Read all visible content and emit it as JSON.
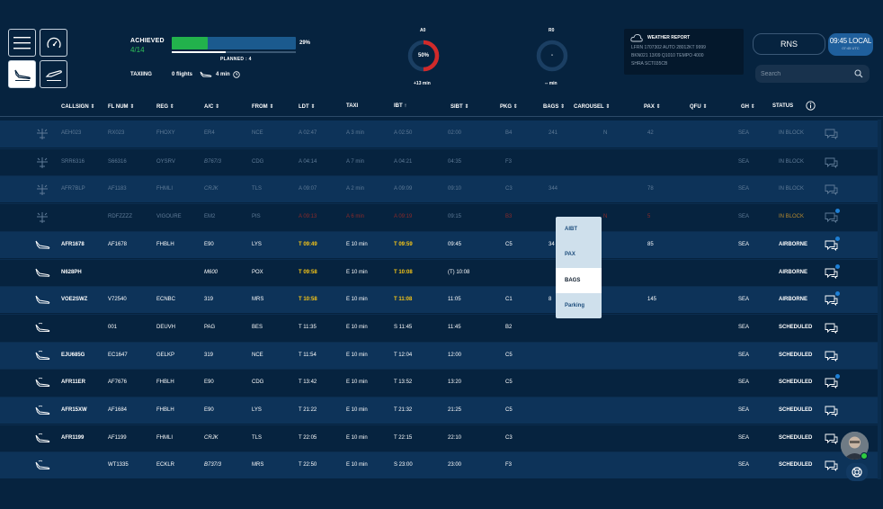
{
  "header": {
    "achieved_label": "ACHIEVED",
    "achieved_value": "4/14",
    "progress_fraction": 0.29,
    "progress_pct": "29%",
    "planned_label": "PLANNED : 4",
    "taxiing_label": "TAXIING",
    "taxiing_flights": "0 flights",
    "taxiing_time": "4 min",
    "gauge_a0": {
      "title": "A0",
      "value": "50%",
      "sub": "+13 min",
      "fraction": 0.5
    },
    "gauge_r0": {
      "title": "R0",
      "value": "-",
      "sub": "-- min"
    },
    "weather": {
      "title": "WEATHER REPORT",
      "lines": [
        "LFRN 1707302 AUTO 28012KT 9999",
        "BKN021 13/09 Q1010 TEMPO 4000",
        "SHRA SCT035CB"
      ]
    },
    "station_button": "RNS",
    "local_time": "09:45 LOCAL",
    "utc_time": "07:45 UTC",
    "search_placeholder": "Search"
  },
  "colors": {
    "accent": "#1f5f9c",
    "highlight": "#f5c518",
    "green": "#22b24c",
    "alert": "#d12a2a"
  },
  "columns": [
    "CALLSIGN ⇕",
    "FL NUM ⇕",
    "REG ⇕",
    "A/C ⇕",
    "FROM ⇕",
    "LDT ⇕",
    "TAXI",
    "IBT ↑",
    "SIBT ⇕",
    "PKG ⇕",
    "BAGS ⇕",
    "CAROUSEL ⇕",
    "PAX ⇕",
    "QFU ⇕",
    "GH ⇕",
    "STATUS"
  ],
  "rows": [
    {
      "callsign": "AEH023",
      "flnum": "RX023",
      "reg": "FHOXY",
      "ac": "ER4",
      "from": "NCE",
      "ldt": "A 02:47",
      "taxi": "A 3 min",
      "ibt": "A 02:50",
      "sibt": "02:00",
      "pkg": "B4",
      "bags": "241",
      "carousel": "N",
      "pax": "42",
      "gh": "SEA",
      "status": "IN BLOCK"
    },
    {
      "callsign": "SRR6316",
      "flnum": "S66316",
      "reg": "OYSRV",
      "ac": "B767/3",
      "from": "CDG",
      "ldt": "A 04:14",
      "taxi": "A 7 min",
      "ibt": "A 04:21",
      "sibt": "04:35",
      "pkg": "F3",
      "bags": "",
      "carousel": "",
      "pax": "",
      "gh": "SEA",
      "status": "IN BLOCK"
    },
    {
      "callsign": "AFR7BLP",
      "flnum": "AF1183",
      "reg": "FHMLI",
      "ac": "CRJK",
      "from": "TLS",
      "ldt": "A 09:07",
      "taxi": "A 2 min",
      "ibt": "A 09:09",
      "sibt": "09:10",
      "pkg": "C3",
      "bags": "344",
      "carousel": "",
      "pax": "78",
      "gh": "SEA",
      "status": "IN BLOCK"
    },
    {
      "callsign": "",
      "flnum": "RDFZZZZ",
      "reg": "VIGOURE",
      "ac": "EM2",
      "from": "PIS",
      "ldt": "A 09:13",
      "taxi": "A 6 min",
      "ibt": "A 09:19",
      "sibt": "09:15",
      "pkg": "B3",
      "bags": "",
      "carousel": "N",
      "pax": "5",
      "gh": "SEA",
      "status": "IN BLOCK"
    },
    {
      "callsign": "AFR1678",
      "flnum": "AF1678",
      "reg": "FHBLH",
      "ac": "E90",
      "from": "LYS",
      "ldt": "T 09:49",
      "taxi": "E 10 min",
      "ibt": "T 09:59",
      "sibt": "09:45",
      "pkg": "C5",
      "bags": "34",
      "carousel": "",
      "pax": "85",
      "gh": "SEA",
      "status": "AIRBORNE"
    },
    {
      "callsign": "N628PH",
      "flnum": "",
      "reg": "",
      "ac": "M600",
      "from": "POX",
      "ldt": "T 09:58",
      "taxi": "E 10 min",
      "ibt": "T 10:08",
      "sibt": "(T) 10:08",
      "pkg": "",
      "bags": "",
      "carousel": "",
      "pax": "",
      "gh": "",
      "status": "AIRBORNE"
    },
    {
      "callsign": "VOE2SWZ",
      "flnum": "V72540",
      "reg": "ECNBC",
      "ac": "319",
      "from": "MRS",
      "ldt": "T 10:58",
      "taxi": "E 10 min",
      "ibt": "T 11:08",
      "sibt": "11:05",
      "pkg": "C1",
      "bags": "8",
      "carousel": "",
      "pax": "145",
      "gh": "SEA",
      "status": "AIRBORNE"
    },
    {
      "callsign": "",
      "flnum": "001",
      "reg": "DEUVH",
      "ac": "PAG",
      "from": "BES",
      "ldt": "T 11:35",
      "taxi": "E 10 min",
      "ibt": "S 11:45",
      "sibt": "11:45",
      "pkg": "B2",
      "bags": "",
      "carousel": "",
      "pax": "",
      "gh": "SEA",
      "status": "SCHEDULED"
    },
    {
      "callsign": "EJU685G",
      "flnum": "EC1647",
      "reg": "GELKP",
      "ac": "319",
      "from": "NCE",
      "ldt": "T 11:54",
      "taxi": "E 10 min",
      "ibt": "T 12:04",
      "sibt": "12:00",
      "pkg": "C5",
      "bags": "",
      "carousel": "",
      "pax": "",
      "gh": "SEA",
      "status": "SCHEDULED"
    },
    {
      "callsign": "AFR11ER",
      "flnum": "AF7676",
      "reg": "FHBLH",
      "ac": "E90",
      "from": "CDG",
      "ldt": "T 13:42",
      "taxi": "E 10 min",
      "ibt": "T 13:52",
      "sibt": "13:20",
      "pkg": "C5",
      "bags": "",
      "carousel": "",
      "pax": "",
      "gh": "SEA",
      "status": "SCHEDULED"
    },
    {
      "callsign": "AFR15XW",
      "flnum": "AF1684",
      "reg": "FHBLH",
      "ac": "E90",
      "from": "LYS",
      "ldt": "T 21:22",
      "taxi": "E 10 min",
      "ibt": "T 21:32",
      "sibt": "21:25",
      "pkg": "C5",
      "bags": "",
      "carousel": "",
      "pax": "",
      "gh": "SEA",
      "status": "SCHEDULED"
    },
    {
      "callsign": "AFR1199",
      "flnum": "AF1199",
      "reg": "FHMLI",
      "ac": "CRJK",
      "from": "TLS",
      "ldt": "T 22:05",
      "taxi": "E 10 min",
      "ibt": "T 22:15",
      "sibt": "22:10",
      "pkg": "C3",
      "bags": "",
      "carousel": "",
      "pax": "",
      "gh": "SEA",
      "status": "SCHEDULED"
    },
    {
      "callsign": "",
      "flnum": "WT1335",
      "reg": "ECKLR",
      "ac": "B737/3",
      "from": "MRS",
      "ldt": "T 22:50",
      "taxi": "E 10 min",
      "ibt": "S 23:00",
      "sibt": "23:00",
      "pkg": "F3",
      "bags": "",
      "carousel": "",
      "pax": "",
      "gh": "SEA",
      "status": "SCHEDULED"
    }
  ],
  "dropdown": {
    "items": [
      "AIBT",
      "PAX",
      "BAGS",
      "Parking"
    ],
    "selected": "BAGS"
  }
}
